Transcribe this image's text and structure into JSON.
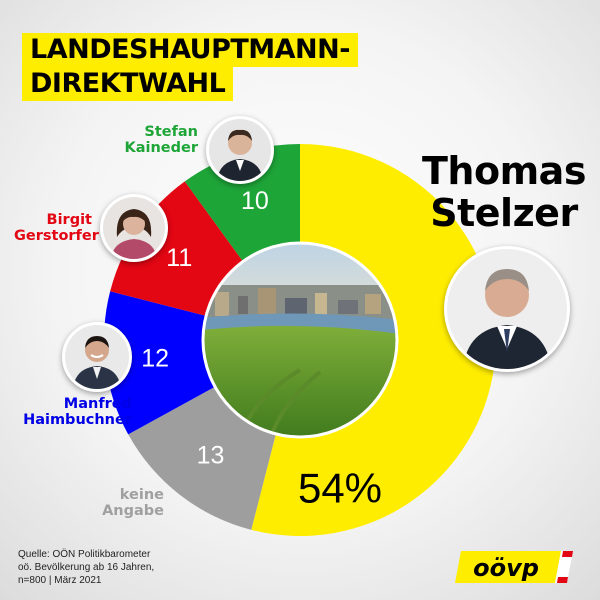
{
  "title": {
    "line1": "LANDESHAUPTMANN-",
    "line2": "DIREKTWAHL"
  },
  "chart_data": {
    "type": "pie",
    "categories": [
      "Thomas Stelzer",
      "keine Angabe",
      "Manfred Haimbuchner",
      "Birgit Gerstorfer",
      "Stefan Kaineder"
    ],
    "values": [
      54,
      13,
      12,
      11,
      10
    ],
    "labels": [
      "54%",
      "13",
      "12",
      "11",
      "10"
    ],
    "colors": [
      "#ffed00",
      "#9e9e9e",
      "#0000ff",
      "#e30613",
      "#1ea538"
    ],
    "label_colors": [
      "#000000",
      "#ffffff",
      "#ffffff",
      "#ffffff",
      "#ffffff"
    ]
  },
  "candidates": {
    "stelzer": "Thomas\nStelzer",
    "haimbuchner": "Manfred\nHaimbuchner",
    "gerstorfer": "Birgit\nGerstorfer",
    "kaineder": "Stefan\nKaineder",
    "keine_angabe": "keine\nAngabe"
  },
  "colors": {
    "stelzer": "#000000",
    "haimbuchner": "#0000e6",
    "gerstorfer": "#e30613",
    "kaineder": "#1ea538",
    "keine_angabe": "#a0a0a0"
  },
  "source": "Quelle: OÖN Politikbarometer\noö. Bevölkerung ab 16 Jahren,\nn=800 | März 2021",
  "logo_text": "oövp"
}
